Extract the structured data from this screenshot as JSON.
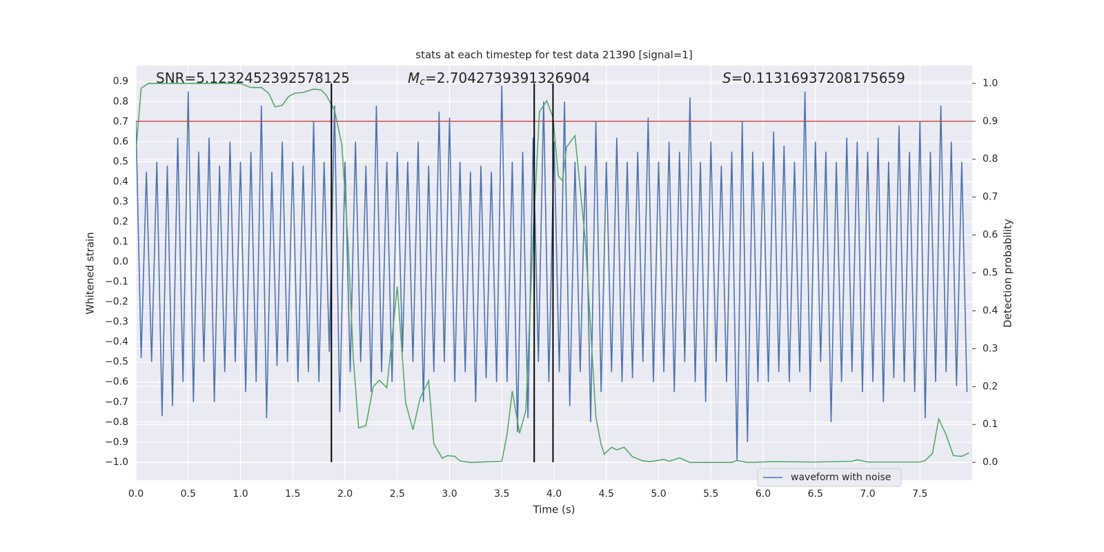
{
  "chart_data": {
    "type": "line",
    "title": "stats at each timestep for test data 21390 [signal=1]",
    "xlabel": "Time (s)",
    "ylabel": "Whitened strain",
    "y2label": "Detection probability",
    "annotations": [
      {
        "text": "SNR=5.1232452392578125"
      },
      {
        "symbol": "M",
        "subscript": "c",
        "text": "=2.7042739391326904"
      },
      {
        "symbol": "S",
        "text": "=0.11316937208175659"
      }
    ],
    "xlim": [
      0,
      8
    ],
    "ylim": [
      -1.09,
      0.98
    ],
    "y2lim": [
      -0.047,
      1.047
    ],
    "xticks": [
      {
        "value": 0,
        "label": "0.0"
      },
      {
        "value": 0.5,
        "label": "0.5"
      },
      {
        "value": 1,
        "label": "1.0"
      },
      {
        "value": 1.5,
        "label": "1.5"
      },
      {
        "value": 2,
        "label": "2.0"
      },
      {
        "value": 2.5,
        "label": "2.5"
      },
      {
        "value": 3,
        "label": "3.0"
      },
      {
        "value": 3.5,
        "label": "3.5"
      },
      {
        "value": 4,
        "label": "4.0"
      },
      {
        "value": 4.5,
        "label": "4.5"
      },
      {
        "value": 5,
        "label": "5.0"
      },
      {
        "value": 5.5,
        "label": "5.5"
      },
      {
        "value": 6,
        "label": "6.0"
      },
      {
        "value": 6.5,
        "label": "6.5"
      },
      {
        "value": 7,
        "label": "7.0"
      },
      {
        "value": 7.5,
        "label": "7.5"
      }
    ],
    "yticks": [
      {
        "value": 0.9,
        "label": "0.9"
      },
      {
        "value": 0.8,
        "label": "0.8"
      },
      {
        "value": 0.7,
        "label": "0.7"
      },
      {
        "value": 0.6,
        "label": "0.6"
      },
      {
        "value": 0.5,
        "label": "0.5"
      },
      {
        "value": 0.4,
        "label": "0.4"
      },
      {
        "value": 0.3,
        "label": "0.3"
      },
      {
        "value": 0.2,
        "label": "0.2"
      },
      {
        "value": 0.1,
        "label": "0.1"
      },
      {
        "value": 0,
        "label": "0.0"
      },
      {
        "value": -0.1,
        "label": "−0.1"
      },
      {
        "value": -0.2,
        "label": "−0.2"
      },
      {
        "value": -0.3,
        "label": "−0.3"
      },
      {
        "value": -0.4,
        "label": "−0.4"
      },
      {
        "value": -0.5,
        "label": "−0.5"
      },
      {
        "value": -0.6,
        "label": "−0.6"
      },
      {
        "value": -0.7,
        "label": "−0.7"
      },
      {
        "value": -0.8,
        "label": "−0.8"
      },
      {
        "value": -0.9,
        "label": "−0.9"
      },
      {
        "value": -1,
        "label": "−1.0"
      }
    ],
    "y2ticks": [
      {
        "value": 0,
        "label": "0.0"
      },
      {
        "value": 0.1,
        "label": "0.1"
      },
      {
        "value": 0.2,
        "label": "0.2"
      },
      {
        "value": 0.3,
        "label": "0.3"
      },
      {
        "value": 0.4,
        "label": "0.4"
      },
      {
        "value": 0.5,
        "label": "0.5"
      },
      {
        "value": 0.6,
        "label": "0.6"
      },
      {
        "value": 0.7,
        "label": "0.7"
      },
      {
        "value": 0.8,
        "label": "0.8"
      },
      {
        "value": 0.9,
        "label": "0.9"
      },
      {
        "value": 1,
        "label": "1.0"
      }
    ],
    "grid": true,
    "legend": "lower right",
    "hlines": [
      {
        "value": 0.9,
        "axis": "y2",
        "color": "#c44e52"
      }
    ],
    "vlines": [
      {
        "value": 1.87,
        "color": "#000000"
      },
      {
        "value": 3.81,
        "color": "#000000"
      },
      {
        "value": 3.99,
        "color": "#000000"
      }
    ],
    "series": [
      {
        "name": "waveform with noise",
        "color": "#4c72b0",
        "x": [
          0,
          0.05,
          0.1,
          0.15,
          0.2,
          0.25,
          0.3,
          0.35,
          0.4,
          0.45,
          0.5,
          0.55,
          0.6,
          0.65,
          0.7,
          0.75,
          0.8,
          0.85,
          0.9,
          0.95,
          1,
          1.05,
          1.1,
          1.15,
          1.2,
          1.25,
          1.3,
          1.35,
          1.4,
          1.45,
          1.5,
          1.55,
          1.6,
          1.65,
          1.7,
          1.75,
          1.8,
          1.85,
          1.9,
          1.95,
          2,
          2.05,
          2.1,
          2.15,
          2.2,
          2.25,
          2.3,
          2.35,
          2.4,
          2.45,
          2.5,
          2.55,
          2.6,
          2.65,
          2.7,
          2.75,
          2.8,
          2.85,
          2.9,
          2.95,
          3,
          3.05,
          3.1,
          3.15,
          3.2,
          3.25,
          3.3,
          3.35,
          3.4,
          3.45,
          3.5,
          3.55,
          3.6,
          3.65,
          3.7,
          3.75,
          3.8,
          3.85,
          3.9,
          3.95,
          4,
          4.05,
          4.1,
          4.15,
          4.2,
          4.25,
          4.3,
          4.35,
          4.4,
          4.45,
          4.5,
          4.55,
          4.6,
          4.65,
          4.7,
          4.75,
          4.8,
          4.85,
          4.9,
          4.95,
          5,
          5.05,
          5.1,
          5.15,
          5.2,
          5.25,
          5.3,
          5.35,
          5.4,
          5.45,
          5.5,
          5.55,
          5.6,
          5.65,
          5.7,
          5.75,
          5.8,
          5.85,
          5.9,
          5.95,
          6,
          6.05,
          6.1,
          6.15,
          6.2,
          6.25,
          6.3,
          6.35,
          6.4,
          6.45,
          6.5,
          6.55,
          6.6,
          6.65,
          6.7,
          6.75,
          6.8,
          6.85,
          6.9,
          6.95,
          7,
          7.05,
          7.1,
          7.15,
          7.2,
          7.25,
          7.3,
          7.35,
          7.4,
          7.45,
          7.5,
          7.55,
          7.6,
          7.65,
          7.7,
          7.75,
          7.8,
          7.85,
          7.9,
          7.95
        ],
        "values": [
          0.7,
          -0.48,
          0.45,
          -0.5,
          0.5,
          -0.77,
          0.48,
          -0.72,
          0.62,
          -0.6,
          0.85,
          -0.7,
          0.55,
          -0.5,
          0.62,
          -0.7,
          0.48,
          -0.55,
          0.6,
          -0.5,
          0.5,
          -0.65,
          0.55,
          -0.6,
          0.78,
          -0.78,
          0.45,
          -0.52,
          0.6,
          -0.5,
          0.5,
          -0.6,
          0.48,
          -0.55,
          0.7,
          -0.6,
          0.5,
          -0.45,
          0.78,
          -0.75,
          0.5,
          -0.55,
          0.6,
          -0.5,
          0.48,
          -0.65,
          0.78,
          -0.55,
          0.5,
          -0.6,
          0.55,
          -0.45,
          0.5,
          -0.5,
          0.6,
          -0.7,
          0.48,
          -0.55,
          0.75,
          -0.5,
          0.72,
          -0.6,
          0.5,
          -0.55,
          0.45,
          -0.7,
          0.48,
          -0.58,
          0.45,
          -0.6,
          0.88,
          -0.6,
          0.5,
          -0.85,
          0.55,
          -0.78,
          0.62,
          -0.5,
          0.8,
          -0.6,
          0.6,
          -0.55,
          0.8,
          -0.72,
          0.5,
          -0.55,
          0.48,
          -0.8,
          0.7,
          -0.65,
          0.5,
          -0.55,
          0.62,
          -0.6,
          0.5,
          -0.58,
          0.55,
          -0.5,
          0.72,
          -0.6,
          0.5,
          -0.55,
          0.6,
          -0.65,
          0.55,
          -0.5,
          0.82,
          -0.6,
          0.5,
          -0.7,
          0.6,
          -0.5,
          0.48,
          -0.6,
          0.55,
          -0.99,
          0.7,
          -0.9,
          0.55,
          -0.6,
          0.5,
          -0.6,
          0.65,
          -0.55,
          0.58,
          -0.6,
          0.5,
          -0.55,
          0.85,
          -0.65,
          0.6,
          -0.5,
          0.55,
          -0.8,
          0.5,
          -0.6,
          0.62,
          -0.55,
          0.6,
          -0.65,
          0.55,
          -0.6,
          0.62,
          -0.7,
          0.5,
          -0.58,
          0.68,
          -0.6,
          0.55,
          -0.65,
          0.7,
          -0.78,
          0.55,
          -0.6,
          0.78,
          -0.55,
          0.6,
          -0.62,
          0.5,
          -0.65
        ]
      },
      {
        "color": "#55a868",
        "axis": "y2",
        "x": [
          0,
          0.05,
          0.12,
          1.0,
          1.1,
          1.2,
          1.27,
          1.33,
          1.4,
          1.46,
          1.52,
          1.6,
          1.7,
          1.77,
          1.82,
          1.9,
          1.97,
          2.03,
          2.08,
          2.13,
          2.2,
          2.27,
          2.33,
          2.4,
          2.45,
          2.5,
          2.58,
          2.65,
          2.72,
          2.8,
          2.85,
          2.93,
          2.98,
          3.05,
          3.1,
          3.2,
          3.5,
          3.55,
          3.6,
          3.67,
          3.73,
          3.8,
          3.86,
          3.93,
          3.99,
          4.04,
          4.08,
          4.12,
          4.2,
          4.3,
          4.4,
          4.45,
          4.48,
          4.55,
          4.6,
          4.67,
          4.75,
          4.85,
          4.92,
          5.05,
          5.1,
          5.2,
          5.3,
          5.7,
          5.75,
          5.85,
          6.1,
          6.5,
          6.85,
          6.9,
          7.0,
          7.5,
          7.55,
          7.62,
          7.68,
          7.75,
          7.82,
          7.9,
          7.97
        ],
        "values": [
          0.82,
          0.987,
          1.0,
          1.0,
          0.989,
          0.989,
          0.974,
          0.938,
          0.942,
          0.965,
          0.974,
          0.976,
          0.985,
          0.983,
          0.969,
          0.929,
          0.838,
          0.574,
          0.273,
          0.091,
          0.097,
          0.2,
          0.217,
          0.197,
          0.328,
          0.464,
          0.158,
          0.086,
          0.171,
          0.215,
          0.049,
          0.011,
          0.018,
          0.016,
          0.004,
          0.0,
          0.003,
          0.073,
          0.188,
          0.077,
          0.137,
          0.6,
          0.925,
          0.954,
          0.91,
          0.756,
          0.743,
          0.832,
          0.862,
          0.583,
          0.12,
          0.047,
          0.022,
          0.04,
          0.033,
          0.04,
          0.015,
          0.004,
          0.002,
          0.008,
          0.003,
          0.012,
          0.0,
          0.0,
          0.005,
          0.0,
          0.002,
          0.001,
          0.003,
          0.007,
          0.001,
          0.001,
          0.005,
          0.024,
          0.115,
          0.073,
          0.018,
          0.016,
          0.025
        ]
      }
    ]
  }
}
